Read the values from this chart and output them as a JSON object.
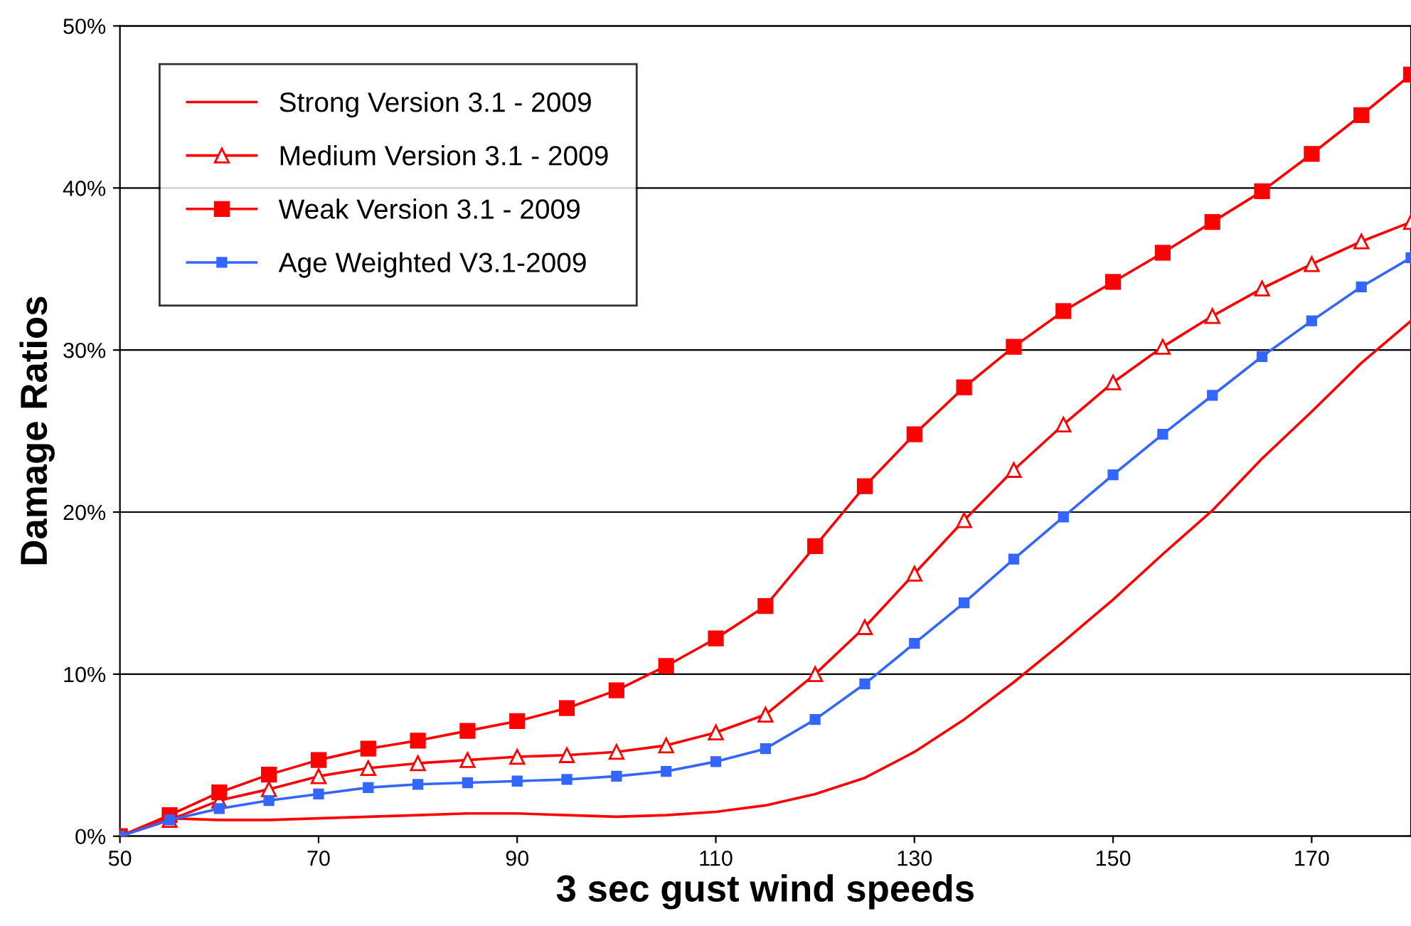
{
  "chart_data": {
    "type": "line",
    "xlabel": "3 sec gust wind speeds",
    "ylabel": "Damage Ratios",
    "x": [
      50,
      55,
      60,
      65,
      70,
      75,
      80,
      85,
      90,
      95,
      100,
      105,
      110,
      115,
      120,
      125,
      130,
      135,
      140,
      145,
      150,
      155,
      160,
      165,
      170,
      175,
      180
    ],
    "xlim": [
      50,
      180
    ],
    "xticks": [
      50,
      70,
      90,
      110,
      130,
      150,
      170
    ],
    "ylim": [
      0,
      50
    ],
    "yticks": [
      {
        "value": 0,
        "label": "0%"
      },
      {
        "value": 10,
        "label": "10%"
      },
      {
        "value": 20,
        "label": "20%"
      },
      {
        "value": 30,
        "label": "30%"
      },
      {
        "value": 40,
        "label": "40%"
      },
      {
        "value": 50,
        "label": "50%"
      }
    ],
    "grid": "y",
    "legend": "top left",
    "line_style": "solid",
    "series": [
      {
        "name": "Strong Version 3.1 - 2009",
        "color": "#ff0000",
        "marker": "none",
        "values": [
          0,
          1.1,
          1.0,
          1.0,
          1.1,
          1.2,
          1.3,
          1.4,
          1.4,
          1.3,
          1.2,
          1.3,
          1.5,
          1.9,
          2.6,
          3.6,
          5.2,
          7.2,
          9.5,
          12.0,
          14.6,
          17.4,
          20.1,
          23.3,
          26.2,
          29.2,
          31.8
        ]
      },
      {
        "name": "Medium Version 3.1 - 2009",
        "color": "#ff0000",
        "marker": "triangle",
        "values": [
          0,
          1.0,
          2.2,
          2.9,
          3.7,
          4.2,
          4.5,
          4.7,
          4.9,
          5.0,
          5.2,
          5.6,
          6.4,
          7.5,
          10.0,
          12.9,
          16.2,
          19.5,
          22.6,
          25.4,
          28.0,
          30.2,
          32.1,
          33.8,
          35.3,
          36.7,
          37.9
        ]
      },
      {
        "name": "Weak Version 3.1 - 2009",
        "color": "#ff0000",
        "marker": "square",
        "values": [
          0,
          1.3,
          2.7,
          3.8,
          4.7,
          5.4,
          5.9,
          6.5,
          7.1,
          7.9,
          9.0,
          10.5,
          12.2,
          14.2,
          17.9,
          21.6,
          24.8,
          27.7,
          30.2,
          32.4,
          34.2,
          36.0,
          37.9,
          39.8,
          42.1,
          44.5,
          47.0
        ]
      },
      {
        "name": "Age Weighted V3.1-2009",
        "color": "#3366ff",
        "marker": "square",
        "values": [
          0,
          1.0,
          1.7,
          2.2,
          2.6,
          3.0,
          3.2,
          3.3,
          3.4,
          3.5,
          3.7,
          4.0,
          4.6,
          5.4,
          7.2,
          9.4,
          11.9,
          14.4,
          17.1,
          19.7,
          22.3,
          24.8,
          27.2,
          29.6,
          31.8,
          33.9,
          35.7
        ]
      }
    ]
  }
}
